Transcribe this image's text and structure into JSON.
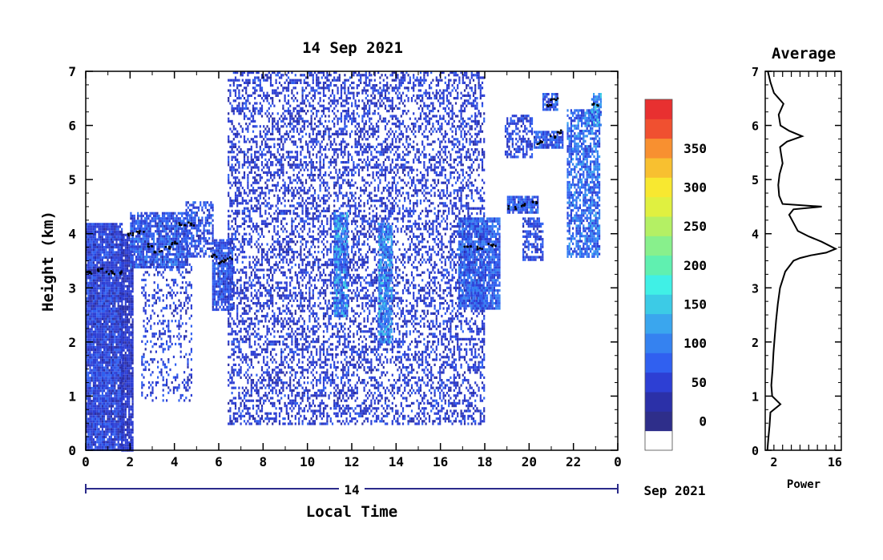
{
  "chart_data": [
    {
      "type": "heatmap",
      "title": "14 Sep 2021",
      "xlabel": "Local Time",
      "ylabel": "Height (km)",
      "xlim": [
        0,
        24
      ],
      "ylim": [
        0,
        7
      ],
      "x_ticks": [
        "0",
        "2",
        "4",
        "6",
        "8",
        "10",
        "12",
        "14",
        "16",
        "18",
        "20",
        "22",
        "0"
      ],
      "y_ticks": [
        "0",
        "1",
        "2",
        "3",
        "4",
        "5",
        "6",
        "7"
      ],
      "date_axis": {
        "day_label": "14",
        "month_label": "Sep 2021"
      },
      "colorbar": {
        "ticks": [
          "0",
          "50",
          "100",
          "150",
          "200",
          "250",
          "300",
          "350"
        ],
        "levels": [
          0,
          25,
          50,
          75,
          100,
          125,
          150,
          175,
          200,
          225,
          250,
          275,
          300,
          325,
          350,
          375
        ],
        "colors": [
          "#2e2e8a",
          "#2b30a8",
          "#2d3fd4",
          "#3060f0",
          "#3582f0",
          "#3aa6ee",
          "#3ccbe6",
          "#40f0e6",
          "#60f0b0",
          "#88f08c",
          "#b4f064",
          "#e0f040",
          "#f8e830",
          "#f8c030",
          "#f89030",
          "#f05030",
          "#e83030"
        ]
      },
      "regions": [
        {
          "t0": 0.0,
          "t1": 1.6,
          "h0": 0.0,
          "h1": 4.2,
          "density": 0.95,
          "level": 40
        },
        {
          "t0": 1.6,
          "t1": 2.1,
          "h0": 0.0,
          "h1": 4.0,
          "density": 0.9,
          "level": 30
        },
        {
          "t0": 2.0,
          "t1": 4.6,
          "h0": 3.4,
          "h1": 4.4,
          "density": 0.85,
          "level": 55
        },
        {
          "t0": 2.5,
          "t1": 4.8,
          "h0": 0.9,
          "h1": 3.5,
          "density": 0.25,
          "level": 40
        },
        {
          "t0": 4.5,
          "t1": 5.7,
          "h0": 3.6,
          "h1": 4.6,
          "density": 0.6,
          "level": 50
        },
        {
          "t0": 5.7,
          "t1": 6.6,
          "h0": 2.6,
          "h1": 3.9,
          "density": 0.85,
          "level": 50
        },
        {
          "t0": 6.4,
          "t1": 18.0,
          "h0": 0.5,
          "h1": 7.0,
          "density": 0.4,
          "level": 35
        },
        {
          "t0": 11.2,
          "t1": 11.8,
          "h0": 2.5,
          "h1": 4.4,
          "density": 0.8,
          "level": 90
        },
        {
          "t0": 13.2,
          "t1": 13.8,
          "h0": 2.0,
          "h1": 4.2,
          "density": 0.8,
          "level": 90
        },
        {
          "t0": 16.8,
          "t1": 18.7,
          "h0": 2.6,
          "h1": 4.3,
          "density": 0.85,
          "level": 60
        },
        {
          "t0": 18.9,
          "t1": 20.1,
          "h0": 5.4,
          "h1": 6.2,
          "density": 0.6,
          "level": 45
        },
        {
          "t0": 19.0,
          "t1": 20.4,
          "h0": 4.4,
          "h1": 4.7,
          "density": 0.85,
          "level": 55
        },
        {
          "t0": 20.2,
          "t1": 21.5,
          "h0": 5.6,
          "h1": 5.9,
          "density": 0.85,
          "level": 60
        },
        {
          "t0": 20.6,
          "t1": 21.3,
          "h0": 6.3,
          "h1": 6.6,
          "density": 0.8,
          "level": 60
        },
        {
          "t0": 21.7,
          "t1": 23.2,
          "h0": 3.6,
          "h1": 6.3,
          "density": 0.7,
          "level": 70
        },
        {
          "t0": 22.8,
          "t1": 23.2,
          "h0": 6.0,
          "h1": 6.6,
          "density": 0.8,
          "level": 90
        },
        {
          "t0": 19.7,
          "t1": 20.6,
          "h0": 3.5,
          "h1": 4.3,
          "density": 0.6,
          "level": 45
        }
      ],
      "black_trace": [
        [
          0.1,
          3.3
        ],
        [
          0.6,
          3.35
        ],
        [
          1.0,
          3.3
        ],
        [
          1.4,
          3.3
        ],
        [
          2.0,
          4.0
        ],
        [
          2.4,
          4.05
        ],
        [
          2.8,
          3.8
        ],
        [
          3.2,
          3.7
        ],
        [
          3.6,
          3.75
        ],
        [
          4.0,
          3.85
        ],
        [
          4.3,
          4.2
        ],
        [
          4.7,
          4.2
        ],
        [
          5.8,
          3.6
        ],
        [
          6.1,
          3.5
        ],
        [
          6.4,
          3.55
        ],
        [
          17.2,
          3.8
        ],
        [
          17.8,
          3.75
        ],
        [
          18.3,
          3.8
        ],
        [
          19.2,
          4.5
        ],
        [
          19.7,
          4.55
        ],
        [
          20.2,
          4.6
        ],
        [
          20.5,
          5.7
        ],
        [
          21.0,
          5.8
        ],
        [
          21.4,
          5.9
        ],
        [
          20.8,
          6.4
        ],
        [
          21.1,
          6.5
        ],
        [
          22.9,
          6.4
        ]
      ]
    },
    {
      "type": "line",
      "title": "Average",
      "xlabel": "Power",
      "ylim": [
        0,
        7
      ],
      "x_tick_labels": [
        "2",
        "16"
      ],
      "y_ticks": [
        "0",
        "1",
        "2",
        "3",
        "4",
        "5",
        "6",
        "7"
      ],
      "profile": [
        [
          0.5,
          0.0
        ],
        [
          0.7,
          0.2
        ],
        [
          1.0,
          0.45
        ],
        [
          1.2,
          0.7
        ],
        [
          3.5,
          0.85
        ],
        [
          1.6,
          1.0
        ],
        [
          1.4,
          1.2
        ],
        [
          1.7,
          1.5
        ],
        [
          1.9,
          1.8
        ],
        [
          2.2,
          2.1
        ],
        [
          2.5,
          2.4
        ],
        [
          2.9,
          2.7
        ],
        [
          3.4,
          3.0
        ],
        [
          4.6,
          3.3
        ],
        [
          6.5,
          3.5
        ],
        [
          8.0,
          3.55
        ],
        [
          10.5,
          3.6
        ],
        [
          14.0,
          3.65
        ],
        [
          16.2,
          3.72
        ],
        [
          13.0,
          3.85
        ],
        [
          10.0,
          3.95
        ],
        [
          7.5,
          4.05
        ],
        [
          6.5,
          4.2
        ],
        [
          5.5,
          4.35
        ],
        [
          6.5,
          4.45
        ],
        [
          13.0,
          4.5
        ],
        [
          4.0,
          4.55
        ],
        [
          3.2,
          4.7
        ],
        [
          3.0,
          4.9
        ],
        [
          3.3,
          5.1
        ],
        [
          4.0,
          5.3
        ],
        [
          3.6,
          5.5
        ],
        [
          3.4,
          5.6
        ],
        [
          5.0,
          5.7
        ],
        [
          8.5,
          5.8
        ],
        [
          5.5,
          5.9
        ],
        [
          3.5,
          6.0
        ],
        [
          3.1,
          6.2
        ],
        [
          4.2,
          6.4
        ],
        [
          2.0,
          6.6
        ],
        [
          1.2,
          6.8
        ],
        [
          0.6,
          7.0
        ]
      ]
    }
  ]
}
